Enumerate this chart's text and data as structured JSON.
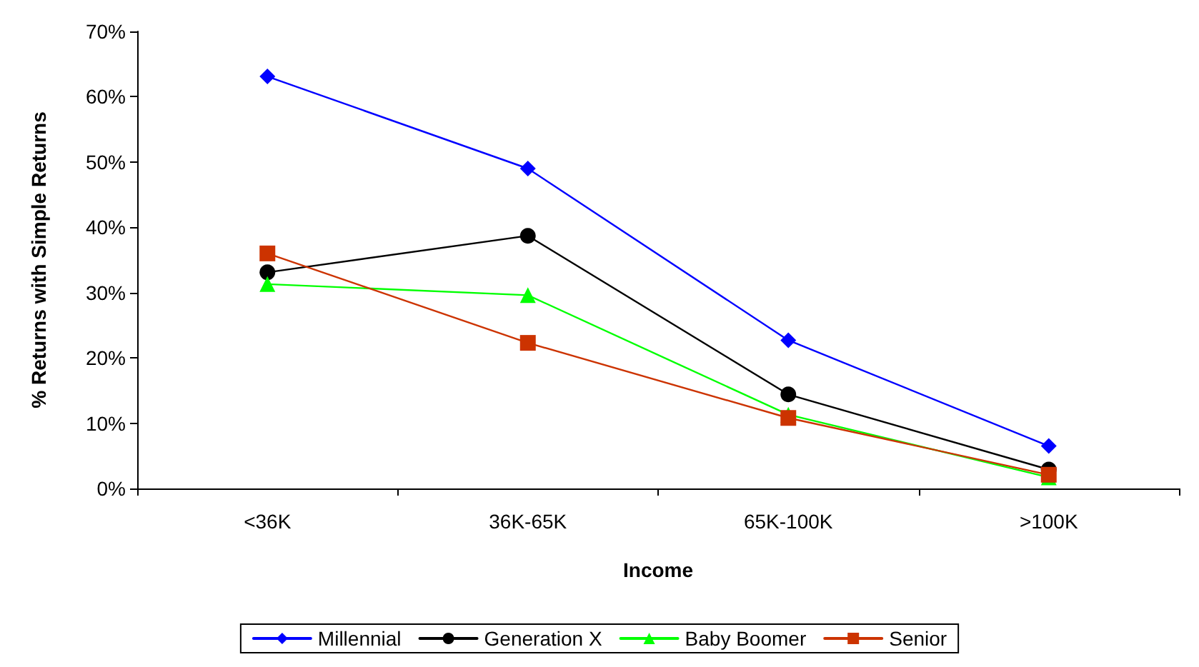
{
  "chart_data": {
    "type": "line",
    "xlabel": "Income",
    "ylabel": "% Returns with Simple Returns",
    "categories": [
      "<36K",
      "36K-65K",
      "65K-100K",
      ">100K"
    ],
    "series": [
      {
        "name": "Millennial",
        "color": "#0000ff",
        "marker": "diamond",
        "values": [
          63.1,
          49,
          22.7,
          6.5
        ]
      },
      {
        "name": "Generation X",
        "color": "#000000",
        "marker": "circle",
        "values": [
          33.1,
          38.7,
          14.4,
          2.9
        ]
      },
      {
        "name": "Baby Boomer",
        "color": "#00ff00",
        "marker": "triangle",
        "values": [
          31.3,
          29.6,
          11.3,
          1.7
        ]
      },
      {
        "name": "Senior",
        "color": "#cc3300",
        "marker": "square",
        "values": [
          36,
          22.3,
          10.8,
          2.1
        ]
      }
    ],
    "ylim": [
      0,
      70
    ],
    "yticks": [
      {
        "value": 0,
        "label": "0%"
      },
      {
        "value": 10,
        "label": "10%"
      },
      {
        "value": 20,
        "label": "20%"
      },
      {
        "value": 30,
        "label": "30%"
      },
      {
        "value": 40,
        "label": "40%"
      },
      {
        "value": 50,
        "label": "50%"
      },
      {
        "value": 60,
        "label": "60%"
      },
      {
        "value": 70,
        "label": "70%"
      }
    ],
    "grid": false,
    "legend": "bottom",
    "line_style": "solid"
  }
}
